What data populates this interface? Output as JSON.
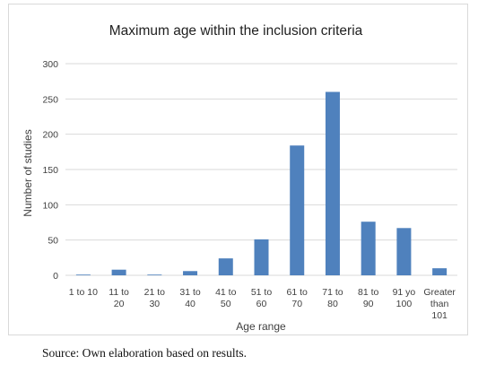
{
  "chart_data": {
    "type": "bar",
    "title": "Maximum age within the inclusion criteria",
    "xlabel": "Age range",
    "ylabel": "Number of studies",
    "ylim": [
      0,
      300
    ],
    "yticks": [
      "0",
      "50",
      "100",
      "150",
      "200",
      "250",
      "300"
    ],
    "categories": [
      [
        "1 to 10"
      ],
      [
        "11 to",
        "20"
      ],
      [
        "21 to",
        "30"
      ],
      [
        "31 to",
        "40"
      ],
      [
        "41 to",
        "50"
      ],
      [
        "51 to",
        "60"
      ],
      [
        "61 to",
        "70"
      ],
      [
        "71 to",
        "80"
      ],
      [
        "81 to",
        "90"
      ],
      [
        "91 yo",
        "100"
      ],
      [
        "Greater",
        "than",
        "101"
      ]
    ],
    "values": [
      1,
      8,
      1,
      6,
      24,
      51,
      184,
      260,
      76,
      67,
      10
    ],
    "bar_color": "#4f81bd",
    "grid": true,
    "legend": "none"
  },
  "source_note": "Source: Own elaboration based on results."
}
